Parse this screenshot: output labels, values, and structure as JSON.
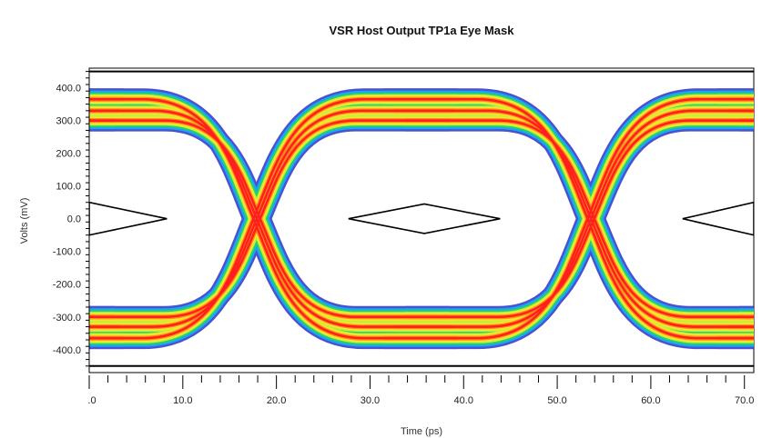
{
  "chart_data": {
    "type": "eye-diagram",
    "title": "VSR Host Output TP1a Eye Mask",
    "xlabel": "Time (ps)",
    "ylabel": "Volts (mV)",
    "xlim": [
      0,
      71
    ],
    "ylim": [
      -470,
      460
    ],
    "x_ticks": [
      {
        "value": 0,
        "label": ".0"
      },
      {
        "value": 10,
        "label": "10.0"
      },
      {
        "value": 20,
        "label": "20.0"
      },
      {
        "value": 30,
        "label": "30.0"
      },
      {
        "value": 40,
        "label": "40.0"
      },
      {
        "value": 50,
        "label": "50.0"
      },
      {
        "value": 60,
        "label": "60.0"
      },
      {
        "value": 70,
        "label": "70.0"
      }
    ],
    "y_ticks": [
      {
        "value": 400,
        "label": "400.0"
      },
      {
        "value": 300,
        "label": "300.0"
      },
      {
        "value": 200,
        "label": "200.0"
      },
      {
        "value": 100,
        "label": "100.0"
      },
      {
        "value": 0,
        "label": "0.0"
      },
      {
        "value": -100,
        "label": "-100.0"
      },
      {
        "value": -200,
        "label": "-200.0"
      },
      {
        "value": -300,
        "label": "-300.0"
      },
      {
        "value": -400,
        "label": "-400.0"
      }
    ],
    "unit_interval_ps": 35.7,
    "crossing_times_ps": [
      17.9,
      53.6
    ],
    "signal_levels_mv": {
      "high": 330,
      "low": -330,
      "inner_high": 300,
      "inner_low": -300,
      "outer_high": 365,
      "outer_low": -365
    },
    "mask": {
      "upper_limit_mv": 450,
      "lower_limit_mv": -450,
      "center_polygon": [
        [
          27.7,
          0
        ],
        [
          35.8,
          45
        ],
        [
          43.9,
          0
        ],
        [
          35.8,
          -45
        ]
      ],
      "left_partial_polygon": [
        [
          0,
          50
        ],
        [
          8.3,
          0
        ],
        [
          0,
          -50
        ]
      ],
      "right_partial_polygon": [
        [
          71,
          50
        ],
        [
          63.4,
          0
        ],
        [
          71,
          -50
        ]
      ]
    },
    "grid": false,
    "colormap": [
      "#2b35c8",
      "#1aa3ff",
      "#22d16a",
      "#c6f03a",
      "#ffe22a",
      "#ff8a1a",
      "#ff1f1f"
    ]
  }
}
